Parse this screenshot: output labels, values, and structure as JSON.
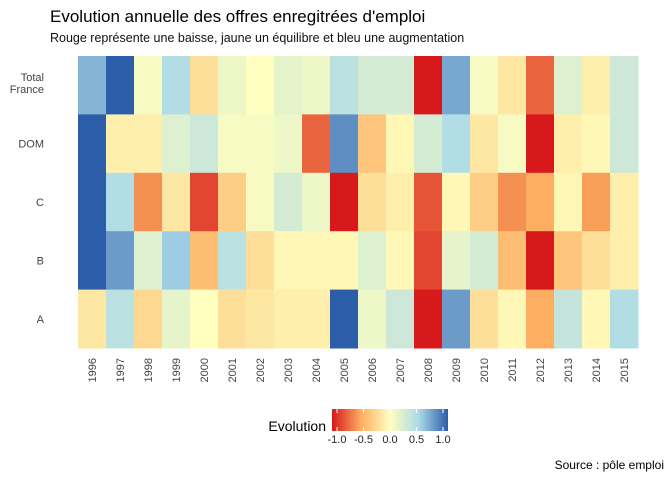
{
  "chart_data": {
    "type": "heatmap",
    "title": "Evolution annuelle des offres enregitrées d'emploi",
    "subtitle": "Rouge représente une baisse, jaune un équilibre et bleu une augmentation",
    "caption": "Source : pôle emploi",
    "x": [
      "1996",
      "1997",
      "1998",
      "1999",
      "2000",
      "2001",
      "2002",
      "2003",
      "2004",
      "2005",
      "2006",
      "2007",
      "2008",
      "2009",
      "2010",
      "2011",
      "2012",
      "2013",
      "2014",
      "2015"
    ],
    "y": [
      "Total France",
      "DOM",
      "C",
      "B",
      "A"
    ],
    "values": [
      [
        0.65,
        1.0,
        0.05,
        0.45,
        -0.2,
        0.1,
        0.0,
        0.15,
        0.1,
        0.4,
        0.25,
        0.25,
        -1.0,
        0.7,
        0.05,
        -0.15,
        -0.75,
        0.2,
        -0.1,
        0.3
      ],
      [
        1.0,
        -0.1,
        -0.1,
        0.2,
        0.3,
        0.05,
        0.05,
        0.1,
        -0.75,
        0.8,
        -0.35,
        -0.05,
        0.25,
        0.45,
        -0.15,
        0.05,
        -1.0,
        -0.1,
        -0.05,
        0.3
      ],
      [
        1.0,
        0.45,
        -0.6,
        -0.15,
        -0.85,
        -0.3,
        0.05,
        0.25,
        0.1,
        -1.0,
        -0.2,
        -0.1,
        -0.8,
        -0.05,
        -0.3,
        -0.6,
        -0.5,
        -0.05,
        -0.55,
        -0.1
      ],
      [
        1.0,
        0.75,
        0.2,
        0.55,
        -0.4,
        0.4,
        -0.2,
        -0.05,
        -0.05,
        -0.05,
        0.2,
        -0.05,
        -0.85,
        0.15,
        0.25,
        -0.4,
        -1.0,
        -0.35,
        -0.2,
        -0.1
      ],
      [
        -0.15,
        0.4,
        -0.25,
        0.15,
        0.0,
        -0.2,
        -0.15,
        -0.1,
        -0.1,
        1.0,
        0.1,
        0.3,
        -1.0,
        0.75,
        -0.2,
        -0.05,
        -0.5,
        0.35,
        -0.05,
        0.45
      ]
    ],
    "legend": {
      "title": "Evolution",
      "ticks": [
        -1.0,
        -0.5,
        0.0,
        0.5,
        1.0
      ],
      "tick_labels": [
        "-1.0",
        "-0.5",
        "0.0",
        "0.5",
        "1.0"
      ],
      "placement": "bottom"
    },
    "scale": {
      "domain": [
        -1.0,
        1.0
      ],
      "colors": [
        "#d7191c",
        "#fdae61",
        "#ffffbf",
        "#abd9e9",
        "#2c5da8"
      ]
    },
    "grid": false
  }
}
